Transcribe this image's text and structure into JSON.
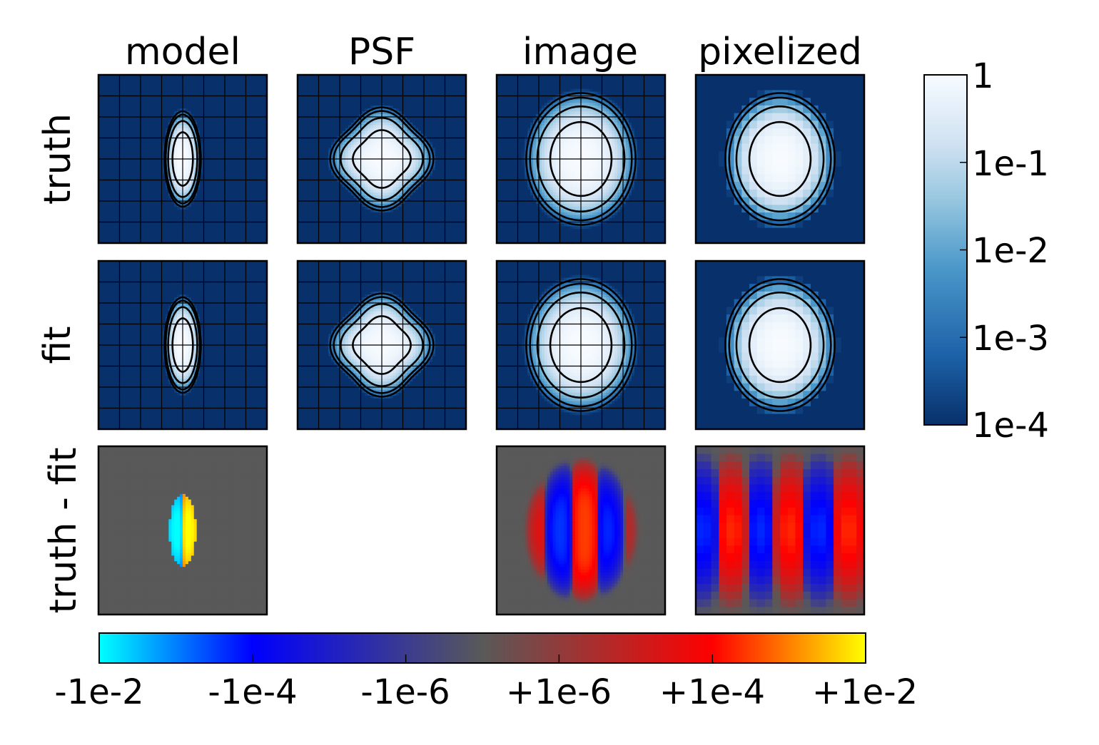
{
  "chart_data": {
    "type": "heatmap",
    "columns": [
      "model",
      "PSF",
      "image",
      "pixelized"
    ],
    "rows": [
      "truth",
      "fit",
      "truth - fit"
    ],
    "panels": [
      {
        "row": "truth",
        "col": "model",
        "kind": "profile",
        "sx": 0.16,
        "sy": 0.42,
        "grid": true,
        "pixelated": false
      },
      {
        "row": "truth",
        "col": "PSF",
        "kind": "psf",
        "sx": 0.42,
        "sy": 0.42,
        "grid": true,
        "pixelated": false
      },
      {
        "row": "truth",
        "col": "image",
        "kind": "profile",
        "sx": 0.48,
        "sy": 0.58,
        "grid": true,
        "pixelated": false
      },
      {
        "row": "truth",
        "col": "pixelized",
        "kind": "profile",
        "sx": 0.48,
        "sy": 0.58,
        "grid": false,
        "pixelated": true
      },
      {
        "row": "fit",
        "col": "model",
        "kind": "profile",
        "sx": 0.16,
        "sy": 0.42,
        "grid": true,
        "pixelated": false
      },
      {
        "row": "fit",
        "col": "PSF",
        "kind": "psf",
        "sx": 0.42,
        "sy": 0.42,
        "grid": true,
        "pixelated": false
      },
      {
        "row": "fit",
        "col": "image",
        "kind": "profile",
        "sx": 0.48,
        "sy": 0.58,
        "grid": true,
        "pixelated": false
      },
      {
        "row": "fit",
        "col": "pixelized",
        "kind": "profile",
        "sx": 0.48,
        "sy": 0.58,
        "grid": false,
        "pixelated": true
      },
      {
        "row": "truth - fit",
        "col": "model",
        "kind": "residual_model",
        "grid": false,
        "pixelated": false
      },
      {
        "row": "truth - fit",
        "col": "image",
        "kind": "residual_image",
        "grid": false,
        "pixelated": false
      },
      {
        "row": "truth - fit",
        "col": "pixelized",
        "kind": "residual_pixel",
        "grid": false,
        "pixelated": true
      }
    ],
    "colorbar_main": {
      "scale": "log",
      "range": [
        0.0001,
        1
      ],
      "ticks": [
        1,
        0.1,
        0.01,
        0.001,
        0.0001
      ],
      "tick_labels": [
        "1",
        "1e-1",
        "1e-2",
        "1e-3",
        "1e-4"
      ],
      "orientation": "vertical",
      "placement": "right"
    },
    "colorbar_residual": {
      "scale": "symlog",
      "range": [
        -0.01,
        0.01
      ],
      "ticks": [
        -0.01,
        -0.0001,
        -1e-06,
        1e-06,
        0.0001,
        0.01
      ],
      "tick_labels": [
        "-1e-2",
        "-1e-4",
        "-1e-6",
        "+1e-6",
        "+1e-4",
        "+1e-2"
      ],
      "orientation": "horizontal",
      "placement": "bottom"
    },
    "contour_levels": [
      0.3,
      0.03,
      0.003,
      0.0006
    ],
    "colors": {
      "main_low": "#08306b",
      "main_high": "#f7fbff",
      "residual_zero": "#595959",
      "residual_neg_end": "#00ffff",
      "residual_pos_end": "#ffff00"
    }
  }
}
